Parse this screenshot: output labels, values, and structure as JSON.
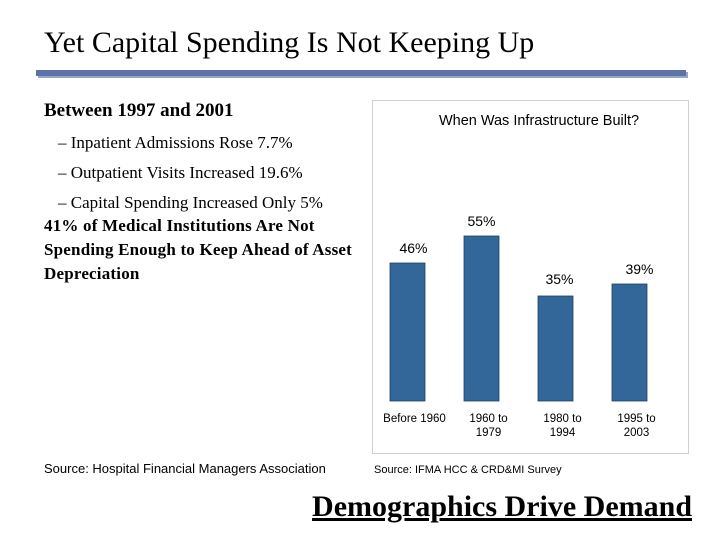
{
  "slide": {
    "title": "Yet Capital Spending Is Not Keeping Up",
    "heading": "Between 1997 and 2001",
    "bullets": [
      "– Inpatient Admissions Rose 7.7%",
      "– Outpatient Visits Increased 19.6%",
      "– Capital Spending Increased Only 5%"
    ],
    "conclusion": "41% of Medical Institutions Are Not Spending Enough to Keep Ahead of Asset Depreciation",
    "source_left": "Source: Hospital Financial Managers Association",
    "source_right": "Source: IFMA HCC & CRD&MI Survey",
    "banner": "Demographics Drive Demand"
  },
  "colors": {
    "bar": "#336699",
    "title_rule": "#5a73a8"
  },
  "chart_data": {
    "type": "bar",
    "title": "When Was Infrastructure Built?",
    "categories": [
      [
        "Before 1960"
      ],
      [
        "1960 to",
        "1979"
      ],
      [
        "1980 to",
        "1994"
      ],
      [
        "1995 to",
        "2003"
      ]
    ],
    "values": [
      46,
      55,
      35,
      39
    ],
    "value_labels": [
      "46%",
      "55%",
      "35%",
      "39%"
    ],
    "ylim": [
      0,
      60
    ],
    "grid": false,
    "legend": "none"
  }
}
